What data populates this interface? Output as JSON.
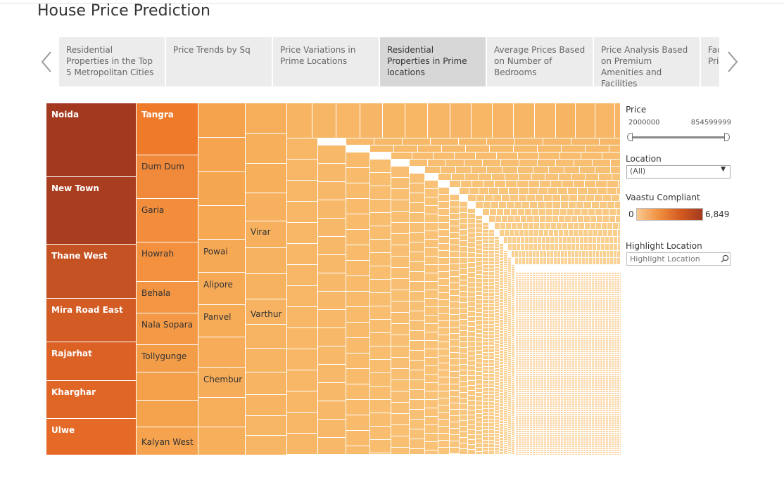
{
  "title": "House Price Prediction",
  "tabs": [
    {
      "label": "Residential Properties in the Top 5 Metropolitan Cities",
      "active": false
    },
    {
      "label": "Price Trends by Sq",
      "active": false
    },
    {
      "label": "Price Variations in Prime Locations",
      "active": false
    },
    {
      "label": "Residential Properties in Prime locations",
      "active": true
    },
    {
      "label": "Average Prices Based on Number of Bedrooms",
      "active": false
    },
    {
      "label": "Price Analysis Based on Premium Amenities and Facilities",
      "active": false
    },
    {
      "label": "Factors Influencing Prices",
      "active": false
    }
  ],
  "treemap": {
    "labels": {
      "noida": "Noida",
      "new_town": "New Town",
      "thane_west": "Thane West",
      "mira_road_east": "Mira Road East",
      "rajarhat": "Rajarhat",
      "kharghar": "Kharghar",
      "ulwe": "Ulwe",
      "tangra": "Tangra",
      "dum_dum": "Dum Dum",
      "garia": "Garia",
      "howrah": "Howrah",
      "behala": "Behala",
      "nala_sopara": "Nala Sopara",
      "tollygunge": "Tollygunge",
      "kalyan_west": "Kalyan West",
      "powai": "Powai",
      "alipore": "Alipore",
      "panvel": "Panvel",
      "chembur": "Chembur",
      "virar": "Virar",
      "varthur": "Varthur"
    },
    "colors": {
      "noida": "#a33a1f",
      "new_town": "#a93d20",
      "thane_west": "#c45222",
      "mira_road_east": "#d35b24",
      "rajarhat": "#db6124",
      "kharghar": "#e06626",
      "ulwe": "#e56a27",
      "tangra": "#ee7a2a",
      "mid": "#f1913d",
      "light": "#f5a651",
      "lighter": "#f8b865"
    }
  },
  "filters": {
    "price": {
      "title": "Price",
      "min": "2000000",
      "max": "854599999",
      "range": [
        2000000,
        854599999
      ]
    },
    "location": {
      "title": "Location",
      "value": "(All)"
    },
    "vaastu": {
      "title": "Vaastu Compliant",
      "min": "0",
      "max": "6,849"
    },
    "highlight": {
      "title": "Highlight Location",
      "placeholder": "Highlight Location"
    }
  },
  "icons": {
    "prev": "chevron-left-icon",
    "next": "chevron-right-icon",
    "search": "search-icon",
    "dropdown": "caret-down-icon"
  }
}
